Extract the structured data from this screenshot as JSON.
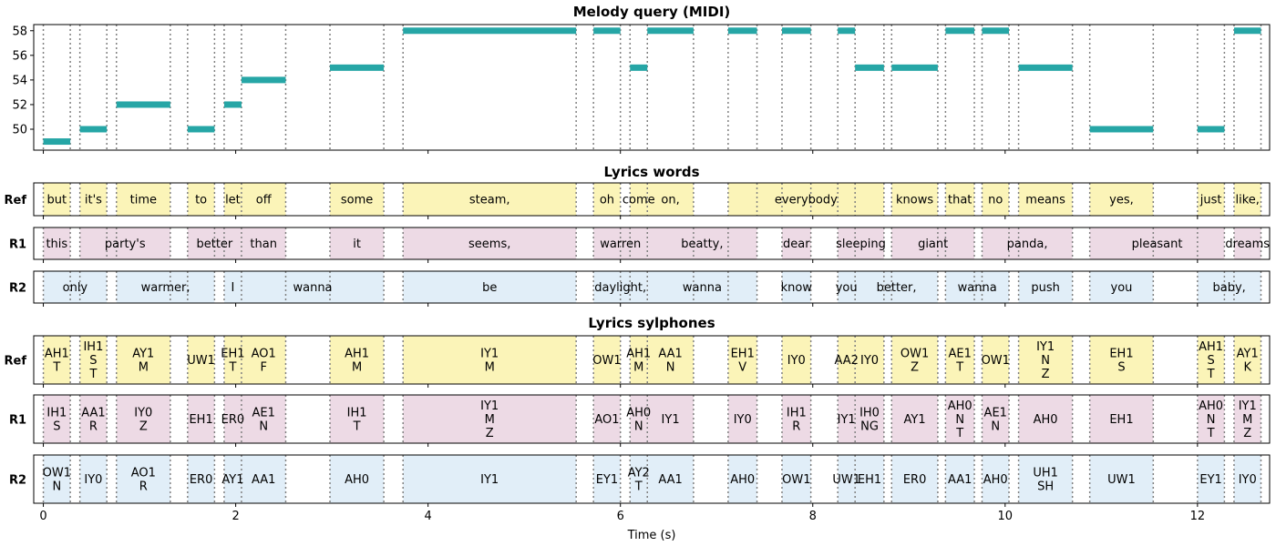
{
  "chart_data": {
    "type": "timeline",
    "xlabel": "Time (s)",
    "xlim": [
      -0.1,
      12.75
    ],
    "xticks": [
      0,
      2,
      4,
      6,
      8,
      10,
      12
    ],
    "colors": {
      "note": "#26a6a6",
      "Ref": "#fbf4b8",
      "R1": "#eddae5",
      "R2": "#e1eef8",
      "boundary": "#808080"
    },
    "melody": {
      "title": "Melody query (MIDI)",
      "ylim": [
        48.3,
        58.5
      ],
      "yticks": [
        50,
        52,
        54,
        56,
        58
      ],
      "notes": [
        {
          "start": 0.0,
          "end": 0.28,
          "pitch": 49
        },
        {
          "start": 0.38,
          "end": 0.66,
          "pitch": 50
        },
        {
          "start": 0.76,
          "end": 1.32,
          "pitch": 52
        },
        {
          "start": 1.5,
          "end": 1.78,
          "pitch": 50
        },
        {
          "start": 1.88,
          "end": 2.06,
          "pitch": 52
        },
        {
          "start": 2.06,
          "end": 2.52,
          "pitch": 54
        },
        {
          "start": 2.98,
          "end": 3.54,
          "pitch": 55
        },
        {
          "start": 3.74,
          "end": 5.54,
          "pitch": 58
        },
        {
          "start": 5.72,
          "end": 6.0,
          "pitch": 58
        },
        {
          "start": 6.1,
          "end": 6.28,
          "pitch": 55
        },
        {
          "start": 6.28,
          "end": 6.76,
          "pitch": 58
        },
        {
          "start": 7.12,
          "end": 7.42,
          "pitch": 58
        },
        {
          "start": 7.68,
          "end": 7.98,
          "pitch": 58
        },
        {
          "start": 8.26,
          "end": 8.44,
          "pitch": 58
        },
        {
          "start": 8.44,
          "end": 8.74,
          "pitch": 55
        },
        {
          "start": 8.82,
          "end": 9.3,
          "pitch": 55
        },
        {
          "start": 9.38,
          "end": 9.68,
          "pitch": 58
        },
        {
          "start": 9.76,
          "end": 10.04,
          "pitch": 58
        },
        {
          "start": 10.14,
          "end": 10.7,
          "pitch": 55
        },
        {
          "start": 10.88,
          "end": 11.54,
          "pitch": 50
        },
        {
          "start": 12.0,
          "end": 12.28,
          "pitch": 50
        },
        {
          "start": 12.38,
          "end": 12.66,
          "pitch": 58
        }
      ]
    },
    "words_title": "Lyrics words",
    "words": [
      {
        "label": "Ref",
        "segments": [
          {
            "start": 0.0,
            "end": 0.28,
            "text": "but"
          },
          {
            "start": 0.38,
            "end": 0.66,
            "text": "it's"
          },
          {
            "start": 0.76,
            "end": 1.32,
            "text": "time"
          },
          {
            "start": 1.5,
            "end": 1.78,
            "text": "to"
          },
          {
            "start": 1.88,
            "end": 2.06,
            "text": "let"
          },
          {
            "start": 2.06,
            "end": 2.52,
            "text": "off"
          },
          {
            "start": 2.98,
            "end": 3.54,
            "text": "some"
          },
          {
            "start": 3.74,
            "end": 5.54,
            "text": "steam,"
          },
          {
            "start": 5.72,
            "end": 6.0,
            "text": "oh"
          },
          {
            "start": 6.1,
            "end": 6.28,
            "text": "come"
          },
          {
            "start": 6.28,
            "end": 6.76,
            "text": "on,"
          },
          {
            "start": 7.12,
            "end": 8.74,
            "text": "everybody"
          },
          {
            "start": 8.82,
            "end": 9.3,
            "text": "knows"
          },
          {
            "start": 9.38,
            "end": 9.68,
            "text": "that"
          },
          {
            "start": 9.76,
            "end": 10.04,
            "text": "no"
          },
          {
            "start": 10.14,
            "end": 10.7,
            "text": "means"
          },
          {
            "start": 10.88,
            "end": 11.54,
            "text": "yes,"
          },
          {
            "start": 12.0,
            "end": 12.28,
            "text": "just"
          },
          {
            "start": 12.38,
            "end": 12.66,
            "text": "like,"
          }
        ]
      },
      {
        "label": "R1",
        "segments": [
          {
            "start": 0.0,
            "end": 0.28,
            "text": "this"
          },
          {
            "start": 0.38,
            "end": 1.32,
            "text": "party's"
          },
          {
            "start": 1.5,
            "end": 2.06,
            "text": "better"
          },
          {
            "start": 2.06,
            "end": 2.52,
            "text": "than"
          },
          {
            "start": 2.98,
            "end": 3.54,
            "text": "it"
          },
          {
            "start": 3.74,
            "end": 5.54,
            "text": "seems,"
          },
          {
            "start": 5.72,
            "end": 6.28,
            "text": "warren"
          },
          {
            "start": 6.28,
            "end": 7.42,
            "text": "beatty,"
          },
          {
            "start": 7.68,
            "end": 7.98,
            "text": "dear"
          },
          {
            "start": 8.26,
            "end": 8.74,
            "text": "sleeping"
          },
          {
            "start": 8.82,
            "end": 9.68,
            "text": "giant"
          },
          {
            "start": 9.76,
            "end": 10.7,
            "text": "panda,"
          },
          {
            "start": 10.88,
            "end": 12.28,
            "text": "pleasant"
          },
          {
            "start": 12.38,
            "end": 12.66,
            "text": "dreams"
          }
        ]
      },
      {
        "label": "R2",
        "segments": [
          {
            "start": 0.0,
            "end": 0.66,
            "text": "only"
          },
          {
            "start": 0.76,
            "end": 1.78,
            "text": "warmer,"
          },
          {
            "start": 1.88,
            "end": 2.06,
            "text": "I"
          },
          {
            "start": 2.06,
            "end": 3.54,
            "text": "wanna"
          },
          {
            "start": 3.74,
            "end": 5.54,
            "text": "be"
          },
          {
            "start": 5.72,
            "end": 6.28,
            "text": "daylight,"
          },
          {
            "start": 6.28,
            "end": 7.42,
            "text": "wanna"
          },
          {
            "start": 7.68,
            "end": 7.98,
            "text": "know"
          },
          {
            "start": 8.26,
            "end": 8.44,
            "text": "you"
          },
          {
            "start": 8.44,
            "end": 9.3,
            "text": "better,"
          },
          {
            "start": 9.38,
            "end": 10.04,
            "text": "wanna"
          },
          {
            "start": 10.14,
            "end": 10.7,
            "text": "push"
          },
          {
            "start": 10.88,
            "end": 11.54,
            "text": "you"
          },
          {
            "start": 12.0,
            "end": 12.66,
            "text": "baby,"
          }
        ]
      }
    ],
    "sylphones_title": "Lyrics sylphones",
    "sylphones": [
      {
        "label": "Ref",
        "segments": [
          {
            "start": 0.0,
            "end": 0.28,
            "text": "AH1\nT"
          },
          {
            "start": 0.38,
            "end": 0.66,
            "text": "IH1\nS\nT"
          },
          {
            "start": 0.76,
            "end": 1.32,
            "text": "AY1\nM"
          },
          {
            "start": 1.5,
            "end": 1.78,
            "text": "UW1"
          },
          {
            "start": 1.88,
            "end": 2.06,
            "text": "EH1\nT"
          },
          {
            "start": 2.06,
            "end": 2.52,
            "text": "AO1\nF"
          },
          {
            "start": 2.98,
            "end": 3.54,
            "text": "AH1\nM"
          },
          {
            "start": 3.74,
            "end": 5.54,
            "text": "IY1\nM"
          },
          {
            "start": 5.72,
            "end": 6.0,
            "text": "OW1"
          },
          {
            "start": 6.1,
            "end": 6.28,
            "text": "AH1\nM"
          },
          {
            "start": 6.28,
            "end": 6.76,
            "text": "AA1\nN"
          },
          {
            "start": 7.12,
            "end": 7.42,
            "text": "EH1\nV"
          },
          {
            "start": 7.68,
            "end": 7.98,
            "text": "IY0"
          },
          {
            "start": 8.26,
            "end": 8.44,
            "text": "AA2"
          },
          {
            "start": 8.44,
            "end": 8.74,
            "text": "IY0"
          },
          {
            "start": 8.82,
            "end": 9.3,
            "text": "OW1\nZ"
          },
          {
            "start": 9.38,
            "end": 9.68,
            "text": "AE1\nT"
          },
          {
            "start": 9.76,
            "end": 10.04,
            "text": "OW1"
          },
          {
            "start": 10.14,
            "end": 10.7,
            "text": "IY1\nN\nZ"
          },
          {
            "start": 10.88,
            "end": 11.54,
            "text": "EH1\nS"
          },
          {
            "start": 12.0,
            "end": 12.28,
            "text": "AH1\nS\nT"
          },
          {
            "start": 12.38,
            "end": 12.66,
            "text": "AY1\nK"
          }
        ]
      },
      {
        "label": "R1",
        "segments": [
          {
            "start": 0.0,
            "end": 0.28,
            "text": "IH1\nS"
          },
          {
            "start": 0.38,
            "end": 0.66,
            "text": "AA1\nR"
          },
          {
            "start": 0.76,
            "end": 1.32,
            "text": "IY0\nZ"
          },
          {
            "start": 1.5,
            "end": 1.78,
            "text": "EH1"
          },
          {
            "start": 1.88,
            "end": 2.06,
            "text": "ER0"
          },
          {
            "start": 2.06,
            "end": 2.52,
            "text": "AE1\nN"
          },
          {
            "start": 2.98,
            "end": 3.54,
            "text": "IH1\nT"
          },
          {
            "start": 3.74,
            "end": 5.54,
            "text": "IY1\nM\nZ"
          },
          {
            "start": 5.72,
            "end": 6.0,
            "text": "AO1"
          },
          {
            "start": 6.1,
            "end": 6.28,
            "text": "AH0\nN"
          },
          {
            "start": 6.28,
            "end": 6.76,
            "text": "IY1"
          },
          {
            "start": 7.12,
            "end": 7.42,
            "text": "IY0"
          },
          {
            "start": 7.68,
            "end": 7.98,
            "text": "IH1\nR"
          },
          {
            "start": 8.26,
            "end": 8.44,
            "text": "IY1"
          },
          {
            "start": 8.44,
            "end": 8.74,
            "text": "IH0\nNG"
          },
          {
            "start": 8.82,
            "end": 9.3,
            "text": "AY1"
          },
          {
            "start": 9.38,
            "end": 9.68,
            "text": "AH0\nN\nT"
          },
          {
            "start": 9.76,
            "end": 10.04,
            "text": "AE1\nN"
          },
          {
            "start": 10.14,
            "end": 10.7,
            "text": "AH0"
          },
          {
            "start": 10.88,
            "end": 11.54,
            "text": "EH1"
          },
          {
            "start": 12.0,
            "end": 12.28,
            "text": "AH0\nN\nT"
          },
          {
            "start": 12.38,
            "end": 12.66,
            "text": "IY1\nM\nZ"
          }
        ]
      },
      {
        "label": "R2",
        "segments": [
          {
            "start": 0.0,
            "end": 0.28,
            "text": "OW1\nN"
          },
          {
            "start": 0.38,
            "end": 0.66,
            "text": "IY0"
          },
          {
            "start": 0.76,
            "end": 1.32,
            "text": "AO1\nR"
          },
          {
            "start": 1.5,
            "end": 1.78,
            "text": "ER0"
          },
          {
            "start": 1.88,
            "end": 2.06,
            "text": "AY1"
          },
          {
            "start": 2.06,
            "end": 2.52,
            "text": "AA1"
          },
          {
            "start": 2.98,
            "end": 3.54,
            "text": "AH0"
          },
          {
            "start": 3.74,
            "end": 5.54,
            "text": "IY1"
          },
          {
            "start": 5.72,
            "end": 6.0,
            "text": "EY1"
          },
          {
            "start": 6.1,
            "end": 6.28,
            "text": "AY2\nT"
          },
          {
            "start": 6.28,
            "end": 6.76,
            "text": "AA1"
          },
          {
            "start": 7.12,
            "end": 7.42,
            "text": "AH0"
          },
          {
            "start": 7.68,
            "end": 7.98,
            "text": "OW1"
          },
          {
            "start": 8.26,
            "end": 8.44,
            "text": "UW1"
          },
          {
            "start": 8.44,
            "end": 8.74,
            "text": "EH1"
          },
          {
            "start": 8.82,
            "end": 9.3,
            "text": "ER0"
          },
          {
            "start": 9.38,
            "end": 9.68,
            "text": "AA1"
          },
          {
            "start": 9.76,
            "end": 10.04,
            "text": "AH0"
          },
          {
            "start": 10.14,
            "end": 10.7,
            "text": "UH1\nSH"
          },
          {
            "start": 10.88,
            "end": 11.54,
            "text": "UW1"
          },
          {
            "start": 12.0,
            "end": 12.28,
            "text": "EY1"
          },
          {
            "start": 12.38,
            "end": 12.66,
            "text": "IY0"
          }
        ]
      }
    ]
  }
}
